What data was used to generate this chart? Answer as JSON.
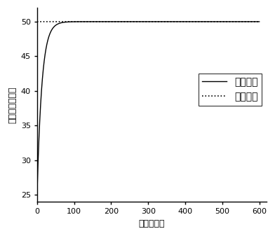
{
  "title": "",
  "xlabel": "时间（秒）",
  "ylabel": "温度（摄氏度）",
  "xlim": [
    0,
    620
  ],
  "ylim": [
    24,
    52
  ],
  "xticks": [
    0,
    100,
    200,
    300,
    400,
    500,
    600
  ],
  "yticks": [
    25,
    30,
    35,
    40,
    45,
    50
  ],
  "ref_temp": 50,
  "init_temp": 25,
  "total_time": 600,
  "tau": 13,
  "line_color": "#000000",
  "ref_line_color": "#000000",
  "legend_actual": "实际温度",
  "legend_ref": "参考温度",
  "background_color": "#ffffff"
}
